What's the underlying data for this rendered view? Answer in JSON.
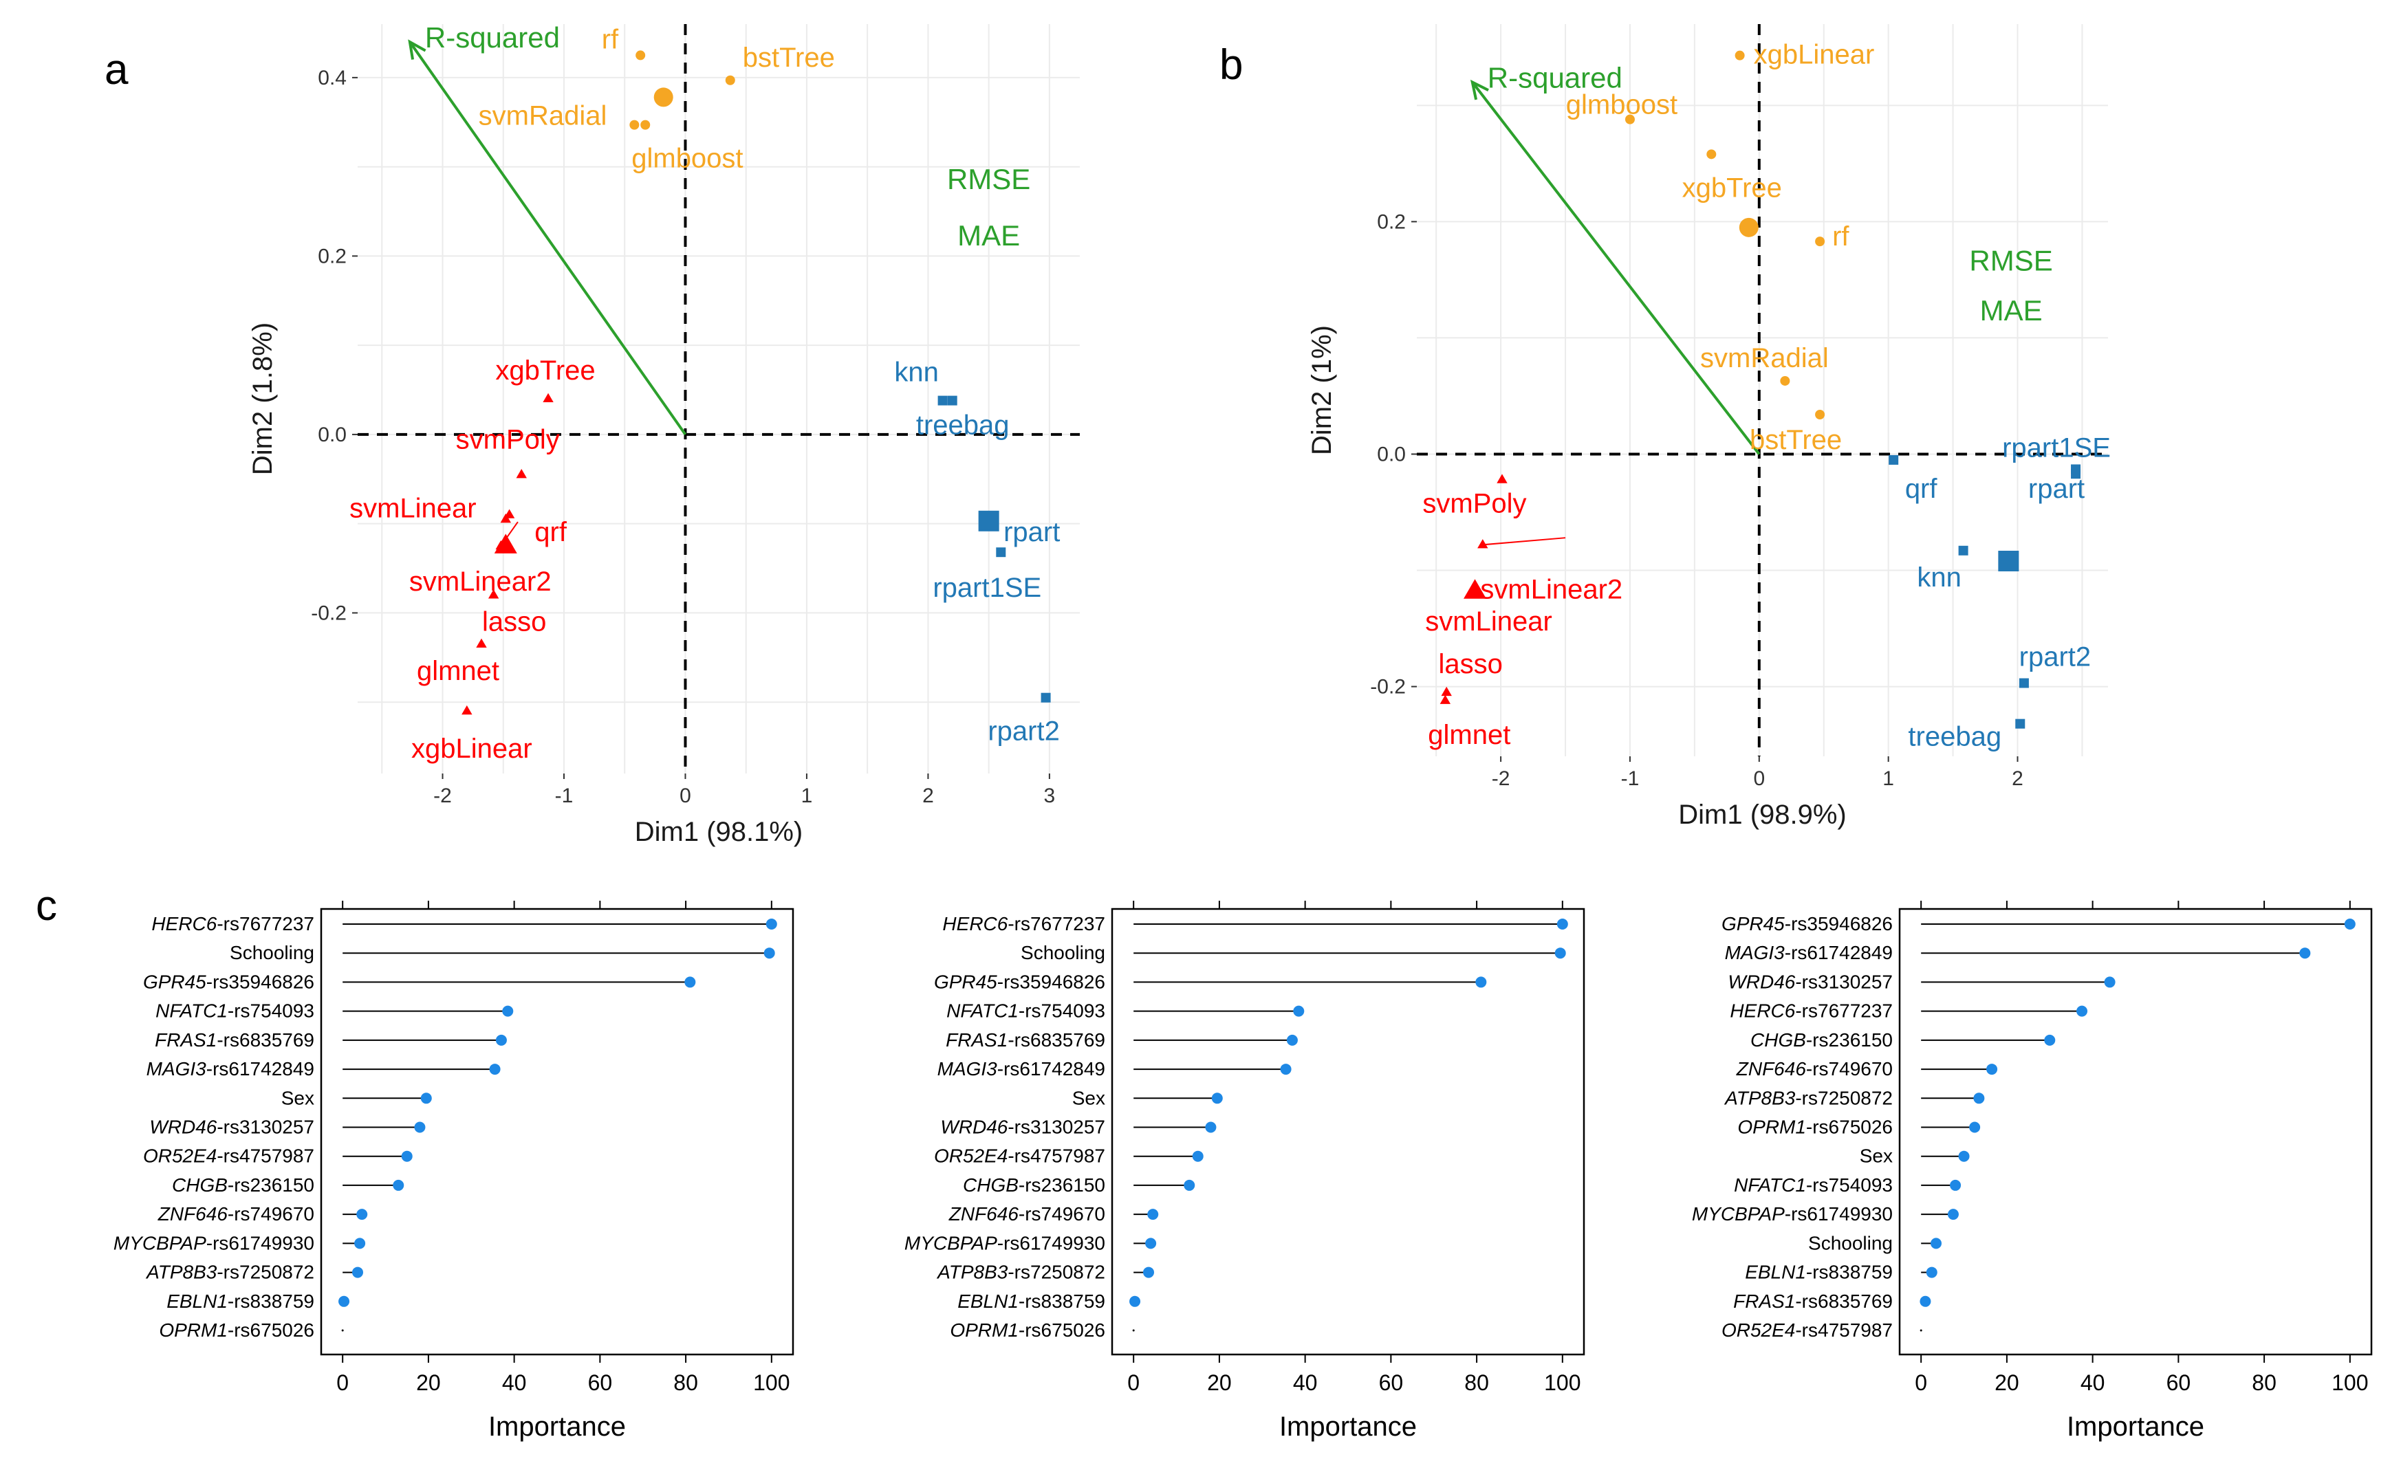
{
  "colors": {
    "green": "#2ca02c",
    "orange": "#f5a623",
    "red": "#ff0000",
    "blue": "#2278b5",
    "lollipop": "#1e88e5",
    "grid": "#ebebeb"
  },
  "panels": {
    "a": {
      "letter": "a"
    },
    "b": {
      "letter": "b"
    },
    "c": {
      "letter": "c"
    }
  },
  "chart_data": [
    {
      "id": "a",
      "type": "scatter",
      "title": "",
      "xlabel": "Dim1 (98.1%)",
      "ylabel": "Dim2 (1.8%)",
      "xlim": [
        -2.7,
        3.25
      ],
      "ylim": [
        -0.38,
        0.46
      ],
      "xticks": [
        -2,
        -1,
        0,
        1,
        2,
        3
      ],
      "yticks": [
        -0.2,
        0.0,
        0.2,
        0.4
      ],
      "ytick_labels": [
        "-0.2",
        "0.0",
        "0.2",
        "0.4"
      ],
      "arrow": {
        "label": "R-squared",
        "end": [
          -2.27,
          0.44
        ]
      },
      "metric_labels": [
        {
          "text": "RMSE",
          "x": 2.5,
          "y": 0.275
        },
        {
          "text": "MAE",
          "x": 2.5,
          "y": 0.212
        }
      ],
      "groups": [
        {
          "name": "orange",
          "color": "orange",
          "shape": "circle",
          "centroid": [
            -0.18,
            0.378
          ],
          "points": [
            {
              "label": "rf",
              "x": -0.37,
              "y": 0.425
            },
            {
              "label": "bstTree",
              "x": 0.37,
              "y": 0.397
            },
            {
              "label": "svmRadial",
              "x": -0.42,
              "y": 0.347
            },
            {
              "label": "glmboost",
              "x": -0.33,
              "y": 0.347
            }
          ]
        },
        {
          "name": "red",
          "color": "red",
          "shape": "triangle",
          "centroid": [
            -1.48,
            -0.125
          ],
          "points": [
            {
              "label": "xgbTree",
              "x": -1.13,
              "y": 0.04
            },
            {
              "label": "svmPoly",
              "x": -1.35,
              "y": -0.045
            },
            {
              "label": "svmLinear",
              "x": -1.45,
              "y": -0.09
            },
            {
              "label": "qrf",
              "x": -1.48,
              "y": -0.095
            },
            {
              "label": "svmLinear2",
              "x": -1.52,
              "y": -0.125
            },
            {
              "label": "lasso",
              "x": -1.58,
              "y": -0.18
            },
            {
              "label": "glmnet",
              "x": -1.68,
              "y": -0.235
            },
            {
              "label": "xgbLinear",
              "x": -1.8,
              "y": -0.31
            }
          ]
        },
        {
          "name": "blue",
          "color": "blue",
          "shape": "square",
          "centroid": [
            2.5,
            -0.097
          ],
          "points": [
            {
              "label": "knn",
              "x": 2.12,
              "y": 0.038
            },
            {
              "label": "treebag",
              "x": 2.2,
              "y": 0.038
            },
            {
              "label": "rpart",
              "x": 2.48,
              "y": -0.097
            },
            {
              "label": "rpart1SE",
              "x": 2.6,
              "y": -0.132
            },
            {
              "label": "rpart2",
              "x": 2.97,
              "y": -0.295
            }
          ]
        }
      ]
    },
    {
      "id": "b",
      "type": "scatter",
      "title": "",
      "xlabel": "Dim1 (98.9%)",
      "ylabel": "Dim2 (1%)",
      "xlim": [
        -2.65,
        2.7
      ],
      "ylim": [
        -0.26,
        0.37
      ],
      "xticks": [
        -2,
        -1,
        0,
        1,
        2
      ],
      "yticks": [
        -0.2,
        0.0,
        0.2
      ],
      "ytick_labels": [
        "-0.2",
        "0.0",
        "0.2"
      ],
      "arrow": {
        "label": "R-squared",
        "end": [
          -2.22,
          0.32
        ]
      },
      "metric_labels": [
        {
          "text": "RMSE",
          "x": 1.95,
          "y": 0.158
        },
        {
          "text": "MAE",
          "x": 1.95,
          "y": 0.115
        }
      ],
      "groups": [
        {
          "name": "orange",
          "color": "orange",
          "shape": "circle",
          "centroid": [
            -0.08,
            0.195
          ],
          "points": [
            {
              "label": "xgbLinear",
              "x": -0.15,
              "y": 0.343
            },
            {
              "label": "glmboost",
              "x": -1.0,
              "y": 0.288
            },
            {
              "label": "xgbTree",
              "x": -0.37,
              "y": 0.258
            },
            {
              "label": "rf",
              "x": 0.47,
              "y": 0.183
            },
            {
              "label": "svmRadial",
              "x": 0.2,
              "y": 0.063
            },
            {
              "label": "bstTree",
              "x": 0.47,
              "y": 0.034
            }
          ]
        },
        {
          "name": "red",
          "color": "red",
          "shape": "triangle",
          "centroid": [
            -2.2,
            -0.118
          ],
          "points": [
            {
              "label": "svmPoly",
              "x": -1.99,
              "y": -0.022
            },
            {
              "label": "svmLinear2",
              "x": -2.14,
              "y": -0.078
            },
            {
              "label": "svmLinear",
              "x": -2.2,
              "y": -0.118
            },
            {
              "label": "lasso",
              "x": -2.42,
              "y": -0.205
            },
            {
              "label": "glmnet",
              "x": -2.43,
              "y": -0.212
            }
          ]
        },
        {
          "name": "blue",
          "color": "blue",
          "shape": "square",
          "centroid": [
            1.93,
            -0.092
          ],
          "points": [
            {
              "label": "qrf",
              "x": 1.04,
              "y": -0.005
            },
            {
              "label": "rpart1SE",
              "x": 2.45,
              "y": -0.013
            },
            {
              "label": "rpart",
              "x": 2.45,
              "y": -0.017
            },
            {
              "label": "knn",
              "x": 1.58,
              "y": -0.083
            },
            {
              "label": "rpart2",
              "x": 2.05,
              "y": -0.197
            },
            {
              "label": "treebag",
              "x": 2.02,
              "y": -0.232
            }
          ]
        }
      ]
    },
    {
      "id": "c1",
      "type": "lollipop",
      "xlabel": "Importance",
      "xlim": [
        -5,
        105
      ],
      "xticks": [
        0,
        20,
        40,
        60,
        80,
        100
      ],
      "rows": [
        {
          "gene": "HERC6",
          "snp": "-rs7677237",
          "value": 100
        },
        {
          "gene": "",
          "snp": "Schooling",
          "value": 99.5
        },
        {
          "gene": "GPR45",
          "snp": "-rs35946826",
          "value": 81
        },
        {
          "gene": "NFATC1",
          "snp": "-rs754093",
          "value": 38.5
        },
        {
          "gene": "FRAS1",
          "snp": "-rs6835769",
          "value": 37
        },
        {
          "gene": "MAGI3",
          "snp": "-rs61742849",
          "value": 35.5
        },
        {
          "gene": "",
          "snp": "Sex",
          "value": 19.5
        },
        {
          "gene": "WRD46",
          "snp": "-rs3130257",
          "value": 18
        },
        {
          "gene": "OR52E4",
          "snp": "-rs4757987",
          "value": 15
        },
        {
          "gene": "CHGB",
          "snp": "-rs236150",
          "value": 13
        },
        {
          "gene": "ZNF646",
          "snp": "-rs749670",
          "value": 4.5
        },
        {
          "gene": "MYCBPAP",
          "snp": "-rs61749930",
          "value": 4
        },
        {
          "gene": "ATP8B3",
          "snp": "-rs7250872",
          "value": 3.5
        },
        {
          "gene": "EBLN1",
          "snp": "-rs838759",
          "value": 0.3
        },
        {
          "gene": "OPRM1",
          "snp": "-rs675026",
          "value": 0
        }
      ]
    },
    {
      "id": "c2",
      "type": "lollipop",
      "xlabel": "Importance",
      "xlim": [
        -5,
        105
      ],
      "xticks": [
        0,
        20,
        40,
        60,
        80,
        100
      ],
      "rows": [
        {
          "gene": "HERC6",
          "snp": "-rs7677237",
          "value": 100
        },
        {
          "gene": "",
          "snp": "Schooling",
          "value": 99.5
        },
        {
          "gene": "GPR45",
          "snp": "-rs35946826",
          "value": 81
        },
        {
          "gene": "NFATC1",
          "snp": "-rs754093",
          "value": 38.5
        },
        {
          "gene": "FRAS1",
          "snp": "-rs6835769",
          "value": 37
        },
        {
          "gene": "MAGI3",
          "snp": "-rs61742849",
          "value": 35.5
        },
        {
          "gene": "",
          "snp": "Sex",
          "value": 19.5
        },
        {
          "gene": "WRD46",
          "snp": "-rs3130257",
          "value": 18
        },
        {
          "gene": "OR52E4",
          "snp": "-rs4757987",
          "value": 15
        },
        {
          "gene": "CHGB",
          "snp": "-rs236150",
          "value": 13
        },
        {
          "gene": "ZNF646",
          "snp": "-rs749670",
          "value": 4.5
        },
        {
          "gene": "MYCBPAP",
          "snp": "-rs61749930",
          "value": 4
        },
        {
          "gene": "ATP8B3",
          "snp": "-rs7250872",
          "value": 3.5
        },
        {
          "gene": "EBLN1",
          "snp": "-rs838759",
          "value": 0.3
        },
        {
          "gene": "OPRM1",
          "snp": "-rs675026",
          "value": 0
        }
      ]
    },
    {
      "id": "c3",
      "type": "lollipop",
      "xlabel": "Importance",
      "xlim": [
        -5,
        105
      ],
      "xticks": [
        0,
        20,
        40,
        60,
        80,
        100
      ],
      "rows": [
        {
          "gene": "GPR45",
          "snp": "-rs35946826",
          "value": 100
        },
        {
          "gene": "MAGI3",
          "snp": "-rs61742849",
          "value": 89.5
        },
        {
          "gene": "WRD46",
          "snp": "-rs3130257",
          "value": 44
        },
        {
          "gene": "HERC6",
          "snp": "-rs7677237",
          "value": 37.5
        },
        {
          "gene": "CHGB",
          "snp": "-rs236150",
          "value": 30
        },
        {
          "gene": "ZNF646",
          "snp": "-rs749670",
          "value": 16.5
        },
        {
          "gene": "ATP8B3",
          "snp": "-rs7250872",
          "value": 13.5
        },
        {
          "gene": "OPRM1",
          "snp": "-rs675026",
          "value": 12.5
        },
        {
          "gene": "",
          "snp": "Sex",
          "value": 10
        },
        {
          "gene": "NFATC1",
          "snp": "-rs754093",
          "value": 8
        },
        {
          "gene": "MYCBPAP",
          "snp": "-rs61749930",
          "value": 7.5
        },
        {
          "gene": "",
          "snp": "Schooling",
          "value": 3.5
        },
        {
          "gene": "EBLN1",
          "snp": "-rs838759",
          "value": 2.5
        },
        {
          "gene": "FRAS1",
          "snp": "-rs6835769",
          "value": 1
        },
        {
          "gene": "OR52E4",
          "snp": "-rs4757987",
          "value": 0
        }
      ]
    }
  ]
}
